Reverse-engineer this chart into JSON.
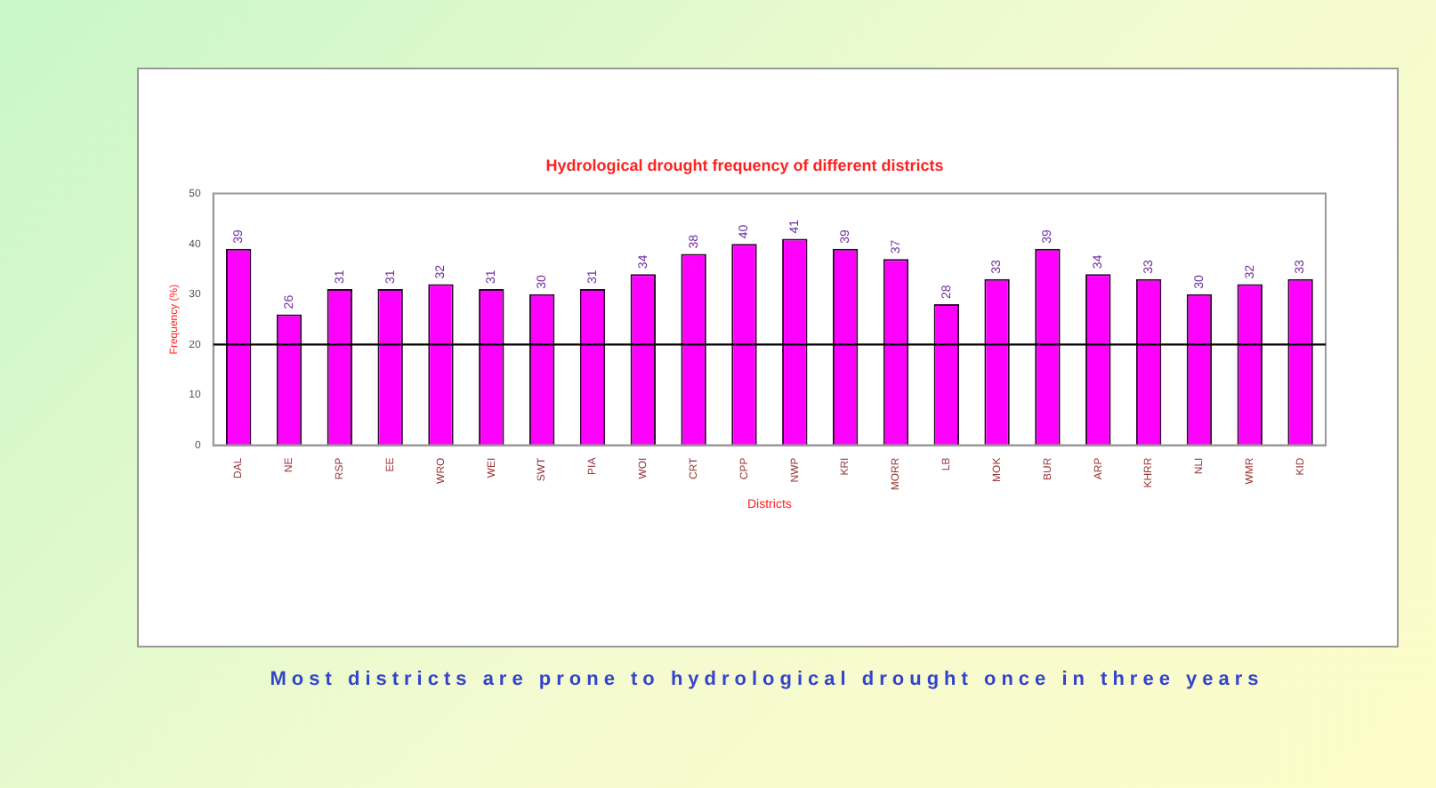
{
  "chart_data": {
    "type": "bar",
    "title": "Hydrological drought frequency of different districts",
    "xlabel": "Districts",
    "ylabel": "Frequency (%)",
    "categories": [
      "DAL",
      "NE",
      "RSP",
      "EE",
      "WRO",
      "WEI",
      "SWT",
      "PIA",
      "WOI",
      "CRT",
      "CPP",
      "NWP",
      "KRI",
      "MORR",
      "LB",
      "MOK",
      "BUR",
      "ARP",
      "KHRR",
      "NLI",
      "WMR",
      "KID"
    ],
    "values": [
      39,
      26,
      31,
      31,
      32,
      31,
      30,
      31,
      34,
      38,
      40,
      41,
      39,
      37,
      28,
      33,
      39,
      34,
      33,
      30,
      32,
      33
    ],
    "color": "#ff00ff",
    "ylim": [
      0,
      50
    ],
    "yticks": [
      0,
      10,
      20,
      30,
      40,
      50
    ],
    "grid": false,
    "legend": false,
    "data_labels": true,
    "ref_lines": [
      {
        "axis": "y",
        "value": 20,
        "color": "#000000"
      }
    ],
    "annotations": [
      "Most districts are prone to hydrological drought once in three years"
    ]
  }
}
